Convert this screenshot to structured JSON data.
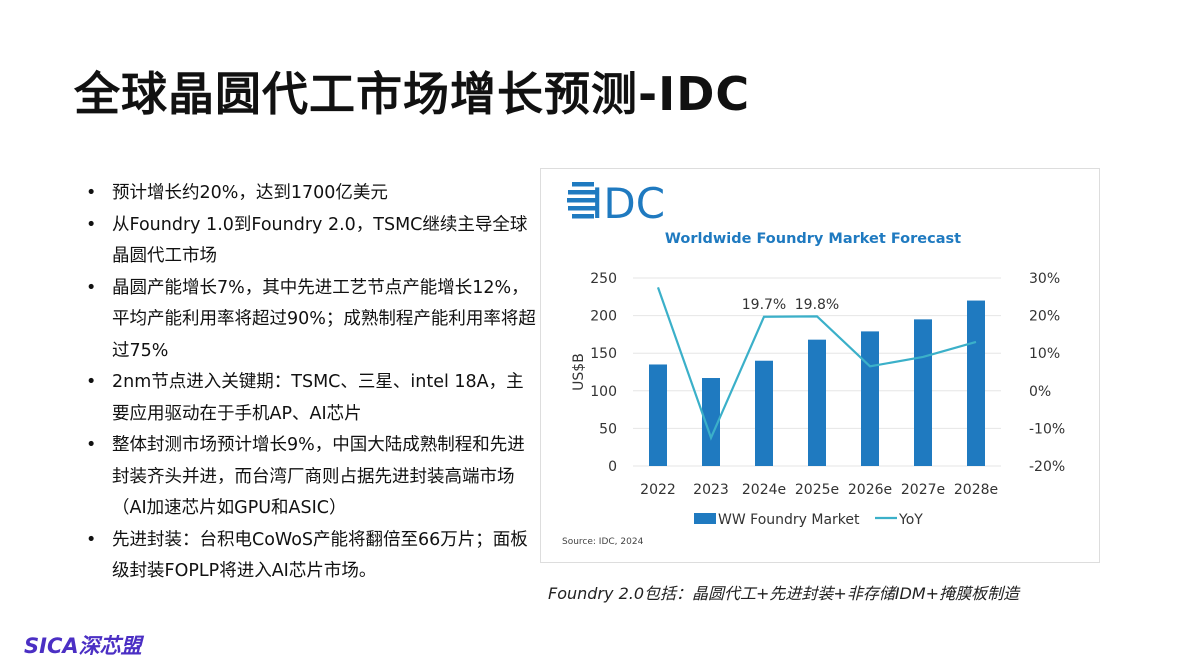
{
  "slide": {
    "title": "全球晶圆代工市场增长预测-IDC",
    "bullets": [
      "预计增长约20%，达到1700亿美元",
      "从Foundry 1.0到Foundry 2.0，TSMC继续主导全球晶圆代工市场",
      "晶圆产能增长7%，其中先进工艺节点产能增长12%，平均产能利用率将超过90%；成熟制程产能利用率将超过75%",
      "2nm节点进入关键期：TSMC、三星、intel 18A，主要应用驱动在于手机AP、AI芯片",
      "整体封测市场预计增长9%，中国大陆成熟制程和先进封装齐头并进，而台湾厂商则占据先进封装高端市场（AI加速芯片如GPU和ASIC）",
      "先进封装：台积电CoWoS产能将翻倍至66万片；面板级封装FOPLP将进入AI芯片市场。"
    ],
    "caption": "Foundry 2.0包括：晶圆代工+先进封装+非存储IDM+掩膜板制造",
    "logo": "SICA深芯盟"
  },
  "chart_data": {
    "type": "bar+line",
    "logo": "IDC",
    "title": "Worldwide Foundry Market Forecast",
    "categories": [
      "2022",
      "2023",
      "2024e",
      "2025e",
      "2026e",
      "2027e",
      "2028e"
    ],
    "ylabel": "US$B",
    "ylim": [
      0,
      250
    ],
    "yticks": [
      "250",
      "200",
      "150",
      "100",
      "50",
      "0"
    ],
    "y2lim": [
      -20,
      30
    ],
    "y2ticks": [
      "30%",
      "20%",
      "10%",
      "0%",
      "-10%",
      "-20%"
    ],
    "series": [
      {
        "name": "WW Foundry Market",
        "type": "bar",
        "values": [
          135,
          117,
          140,
          168,
          179,
          195,
          220
        ],
        "color": "#1f7ac0"
      },
      {
        "name": "YoY",
        "type": "line",
        "axis": "right",
        "values": [
          27.5,
          -12.5,
          19.7,
          19.8,
          6.5,
          9,
          13
        ],
        "color": "#3bb0c9"
      }
    ],
    "annotations": [
      "19.7%",
      "19.8%"
    ],
    "source": "Source: IDC, 2024",
    "grid": true,
    "legend": "bottom"
  }
}
